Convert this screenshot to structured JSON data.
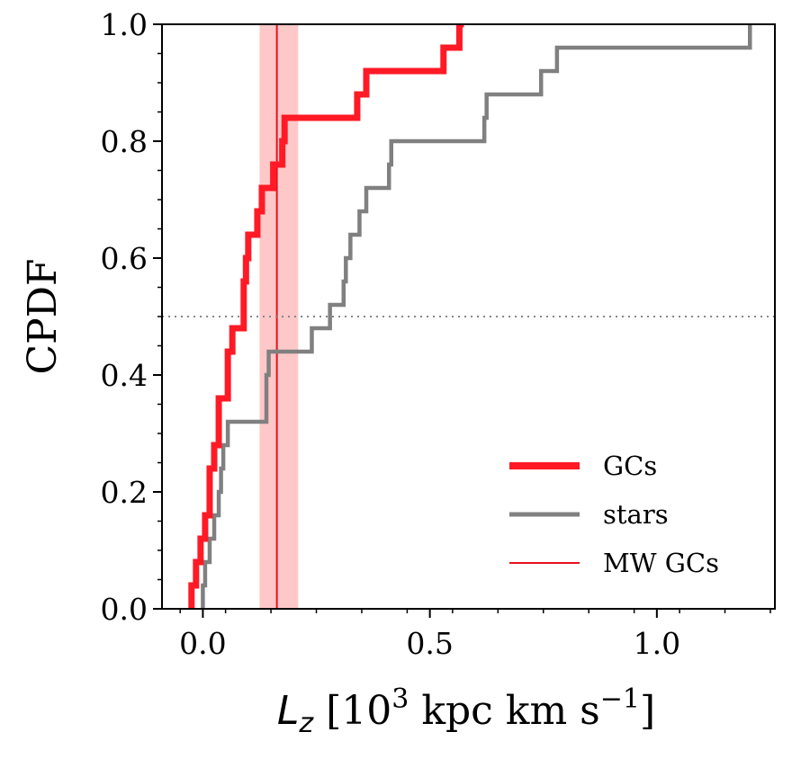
{
  "chart_data": {
    "type": "line",
    "ylabel": "CPDF",
    "xlabel": {
      "symbol": "L",
      "subscript": "z",
      "bracket_open": " [10",
      "exp_base": "3",
      "middle": " kpc km s",
      "exp_unit": "−1",
      "bracket_close": "]"
    },
    "xlim": [
      -0.09,
      1.26
    ],
    "ylim": [
      0.0,
      1.0
    ],
    "xticks": [
      0.0,
      0.5,
      1.0
    ],
    "xtick_labels": [
      "0.0",
      "0.5",
      "1.0"
    ],
    "yticks": [
      0.0,
      0.2,
      0.4,
      0.6,
      0.8,
      1.0
    ],
    "ytick_labels": [
      "0.0",
      "0.2",
      "0.4",
      "0.6",
      "0.8",
      "1.0"
    ],
    "grid": false,
    "legend_position": "lower-right",
    "reference_line": {
      "y": 0.5,
      "style": "dotted",
      "color": "#888888"
    },
    "mw_gcs": {
      "value": 0.163,
      "band": [
        0.125,
        0.21
      ],
      "line_color": "#e8101c",
      "band_color": "#ffc8c8"
    },
    "series": [
      {
        "name": "GCs",
        "color": "#ff1a26",
        "x": [
          -0.025,
          -0.015,
          -0.005,
          0.005,
          0.015,
          0.025,
          0.035,
          0.055,
          0.065,
          0.07,
          0.09,
          0.09,
          0.095,
          0.1,
          0.105,
          0.12,
          0.13,
          0.14,
          0.155,
          0.17,
          0.175,
          0.18,
          0.19,
          0.34,
          0.36,
          0.53,
          0.565,
          0.575
        ],
        "y": [
          0.04,
          0.08,
          0.12,
          0.16,
          0.24,
          0.28,
          0.36,
          0.44,
          0.48,
          0.48,
          0.52,
          0.56,
          0.6,
          0.64,
          0.64,
          0.68,
          0.72,
          0.72,
          0.76,
          0.76,
          0.8,
          0.84,
          0.84,
          0.88,
          0.92,
          0.96,
          1.0,
          1.0
        ]
      },
      {
        "name": "stars",
        "color": "#808080",
        "x": [
          0.0,
          0.005,
          0.015,
          0.025,
          0.035,
          0.04,
          0.045,
          0.055,
          0.065,
          0.14,
          0.145,
          0.24,
          0.28,
          0.31,
          0.315,
          0.325,
          0.345,
          0.36,
          0.41,
          0.415,
          0.62,
          0.625,
          0.745,
          0.78,
          1.2,
          1.205
        ],
        "y": [
          0.04,
          0.08,
          0.12,
          0.16,
          0.2,
          0.24,
          0.28,
          0.32,
          0.32,
          0.4,
          0.44,
          0.48,
          0.52,
          0.56,
          0.6,
          0.64,
          0.68,
          0.72,
          0.76,
          0.8,
          0.84,
          0.88,
          0.92,
          0.96,
          0.96,
          1.0
        ]
      }
    ],
    "legend": [
      {
        "label": "GCs",
        "color": "#ff1a26",
        "weight": "thick"
      },
      {
        "label": "stars",
        "color": "#808080",
        "weight": "medium"
      },
      {
        "label": "MW GCs",
        "color": "#e8101c",
        "weight": "thin"
      }
    ]
  }
}
